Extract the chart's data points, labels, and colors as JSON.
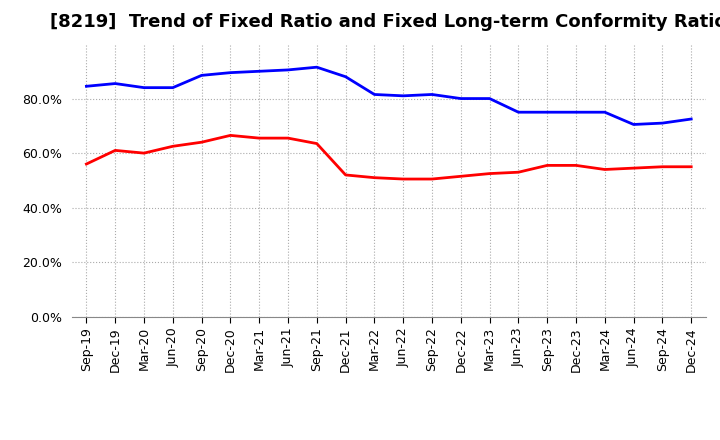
{
  "title": "[8219]  Trend of Fixed Ratio and Fixed Long-term Conformity Ratio",
  "x_labels": [
    "Sep-19",
    "Dec-19",
    "Mar-20",
    "Jun-20",
    "Sep-20",
    "Dec-20",
    "Mar-21",
    "Jun-21",
    "Sep-21",
    "Dec-21",
    "Mar-22",
    "Jun-22",
    "Sep-22",
    "Dec-22",
    "Mar-23",
    "Jun-23",
    "Sep-23",
    "Dec-23",
    "Mar-24",
    "Jun-24",
    "Sep-24",
    "Dec-24"
  ],
  "fixed_ratio": [
    84.5,
    85.5,
    84.0,
    84.0,
    88.5,
    89.5,
    90.0,
    90.5,
    91.5,
    88.0,
    81.5,
    81.0,
    81.5,
    80.0,
    80.0,
    75.0,
    75.0,
    75.0,
    75.0,
    70.5,
    71.0,
    72.5
  ],
  "fixed_lt_ratio": [
    56.0,
    61.0,
    60.0,
    62.5,
    64.0,
    66.5,
    65.5,
    65.5,
    63.5,
    52.0,
    51.0,
    50.5,
    50.5,
    51.5,
    52.5,
    53.0,
    55.5,
    55.5,
    54.0,
    54.5,
    55.0,
    55.0
  ],
  "fixed_ratio_color": "#0000FF",
  "fixed_lt_ratio_color": "#FF0000",
  "ylim": [
    0,
    100
  ],
  "yticks": [
    0,
    20,
    40,
    60,
    80
  ],
  "background_color": "#FFFFFF",
  "grid_color": "#AAAAAA",
  "line_width": 2.0,
  "title_fontsize": 13,
  "tick_fontsize": 9,
  "legend_fontsize": 10
}
